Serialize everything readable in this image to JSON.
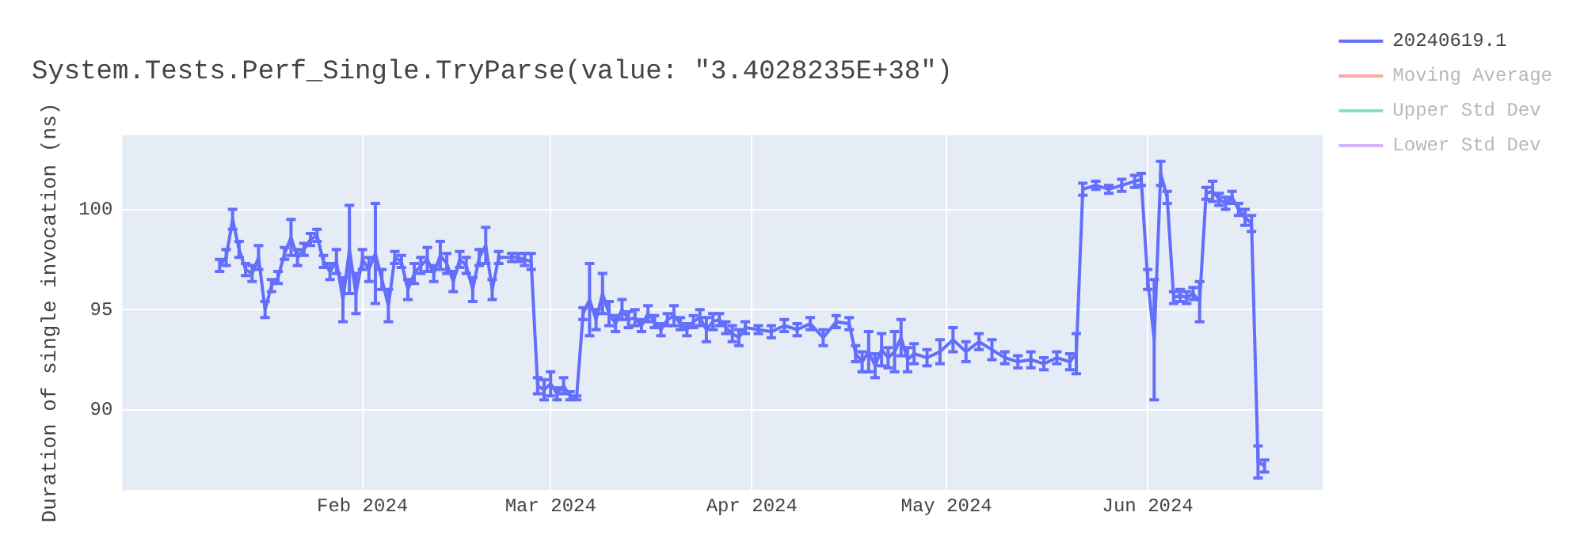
{
  "chart_data": {
    "type": "line",
    "title": "System.Tests.Perf_Single.TryParse(value: \"3.4028235E+38\")",
    "ylabel": "Duration of single invocation (ns)",
    "x": [
      "2024-01-10",
      "2024-01-11",
      "2024-01-12",
      "2024-01-13",
      "2024-01-14",
      "2024-01-15",
      "2024-01-16",
      "2024-01-17",
      "2024-01-18",
      "2024-01-19",
      "2024-01-20",
      "2024-01-21",
      "2024-01-22",
      "2024-01-23",
      "2024-01-24",
      "2024-01-25",
      "2024-01-26",
      "2024-01-27",
      "2024-01-28",
      "2024-01-29",
      "2024-01-30",
      "2024-01-31",
      "2024-02-01",
      "2024-02-02",
      "2024-02-03",
      "2024-02-04",
      "2024-02-05",
      "2024-02-06",
      "2024-02-07",
      "2024-02-08",
      "2024-02-09",
      "2024-02-10",
      "2024-02-11",
      "2024-02-12",
      "2024-02-13",
      "2024-02-14",
      "2024-02-15",
      "2024-02-16",
      "2024-02-17",
      "2024-02-18",
      "2024-02-19",
      "2024-02-20",
      "2024-02-21",
      "2024-02-22",
      "2024-02-24",
      "2024-02-25",
      "2024-02-26",
      "2024-02-27",
      "2024-02-28",
      "2024-02-29",
      "2024-03-01",
      "2024-03-02",
      "2024-03-03",
      "2024-03-04",
      "2024-03-05",
      "2024-03-06",
      "2024-03-07",
      "2024-03-08",
      "2024-03-09",
      "2024-03-10",
      "2024-03-11",
      "2024-03-12",
      "2024-03-13",
      "2024-03-14",
      "2024-03-15",
      "2024-03-16",
      "2024-03-17",
      "2024-03-18",
      "2024-03-19",
      "2024-03-20",
      "2024-03-21",
      "2024-03-22",
      "2024-03-23",
      "2024-03-24",
      "2024-03-25",
      "2024-03-26",
      "2024-03-27",
      "2024-03-28",
      "2024-03-29",
      "2024-03-30",
      "2024-03-31",
      "2024-04-02",
      "2024-04-04",
      "2024-04-06",
      "2024-04-08",
      "2024-04-10",
      "2024-04-12",
      "2024-04-14",
      "2024-04-16",
      "2024-04-17",
      "2024-04-18",
      "2024-04-19",
      "2024-04-20",
      "2024-04-21",
      "2024-04-22",
      "2024-04-23",
      "2024-04-24",
      "2024-04-25",
      "2024-04-26",
      "2024-04-28",
      "2024-04-30",
      "2024-05-02",
      "2024-05-04",
      "2024-05-06",
      "2024-05-08",
      "2024-05-10",
      "2024-05-12",
      "2024-05-14",
      "2024-05-16",
      "2024-05-18",
      "2024-05-20",
      "2024-05-21",
      "2024-05-22",
      "2024-05-24",
      "2024-05-26",
      "2024-05-28",
      "2024-05-30",
      "2024-05-31",
      "2024-06-01",
      "2024-06-02",
      "2024-06-03",
      "2024-06-04",
      "2024-06-05",
      "2024-06-06",
      "2024-06-07",
      "2024-06-08",
      "2024-06-09",
      "2024-06-10",
      "2024-06-11",
      "2024-06-12",
      "2024-06-13",
      "2024-06-14",
      "2024-06-15",
      "2024-06-16",
      "2024-06-17",
      "2024-06-18",
      "2024-06-19"
    ],
    "series": [
      {
        "name": "20240619.1",
        "color": "#636efa",
        "values": [
          97.2,
          97.6,
          99.5,
          98.0,
          97.0,
          96.8,
          97.6,
          95.0,
          96.2,
          96.6,
          97.8,
          98.6,
          97.6,
          98.0,
          98.5,
          98.7,
          97.4,
          96.9,
          97.4,
          95.5,
          98.0,
          95.8,
          97.5,
          97.0,
          97.8,
          96.5,
          95.2,
          97.6,
          97.4,
          96.0,
          96.8,
          97.2,
          97.5,
          96.8,
          97.7,
          97.3,
          96.4,
          97.5,
          97.2,
          96.0,
          97.6,
          98.2,
          96.0,
          97.6,
          97.6,
          97.6,
          97.5,
          97.4,
          91.2,
          91.0,
          91.3,
          90.8,
          91.2,
          90.7,
          90.6,
          94.8,
          95.5,
          94.5,
          95.8,
          94.8,
          94.3,
          95.0,
          94.5,
          94.6,
          94.2,
          94.8,
          94.4,
          94.0,
          94.5,
          94.7,
          94.3,
          94.0,
          94.4,
          94.6,
          94.0,
          94.4,
          94.5,
          94.1,
          93.8,
          93.6,
          94.1,
          94.0,
          93.9,
          94.2,
          94.0,
          94.3,
          93.6,
          94.4,
          94.3,
          92.8,
          92.4,
          92.9,
          92.2,
          93.0,
          92.6,
          92.9,
          93.6,
          92.5,
          92.8,
          92.6,
          92.9,
          93.5,
          92.9,
          93.4,
          93.0,
          92.6,
          92.4,
          92.5,
          92.3,
          92.6,
          92.4,
          92.8,
          101.0,
          101.2,
          101.0,
          101.2,
          101.4,
          101.5,
          96.5,
          93.5,
          101.8,
          100.6,
          95.6,
          95.7,
          95.6,
          95.8,
          95.4,
          100.8,
          100.9,
          100.5,
          100.3,
          100.6,
          100.0,
          99.6,
          99.3,
          87.4,
          87.2
        ],
        "errors": [
          0.3,
          0.4,
          0.5,
          0.4,
          0.3,
          0.4,
          0.6,
          0.4,
          0.3,
          0.3,
          0.3,
          0.9,
          0.4,
          0.3,
          0.3,
          0.3,
          0.3,
          0.4,
          0.6,
          1.1,
          2.2,
          1.0,
          0.5,
          0.6,
          2.5,
          0.5,
          0.8,
          0.3,
          0.3,
          0.5,
          0.5,
          0.4,
          0.6,
          0.4,
          0.7,
          0.5,
          0.5,
          0.4,
          0.4,
          0.6,
          0.4,
          0.9,
          0.5,
          0.3,
          0.2,
          0.2,
          0.3,
          0.4,
          0.4,
          0.5,
          0.6,
          0.3,
          0.4,
          0.2,
          0.1,
          0.3,
          1.8,
          0.5,
          1.0,
          0.6,
          0.4,
          0.5,
          0.4,
          0.4,
          0.3,
          0.4,
          0.3,
          0.3,
          0.3,
          0.5,
          0.3,
          0.3,
          0.3,
          0.4,
          0.6,
          0.4,
          0.3,
          0.3,
          0.4,
          0.4,
          0.3,
          0.2,
          0.3,
          0.3,
          0.3,
          0.3,
          0.4,
          0.3,
          0.3,
          0.4,
          0.5,
          1.0,
          0.6,
          0.8,
          0.5,
          1.0,
          0.9,
          0.6,
          0.5,
          0.4,
          0.6,
          0.6,
          0.5,
          0.4,
          0.5,
          0.3,
          0.3,
          0.4,
          0.3,
          0.3,
          0.4,
          1.0,
          0.3,
          0.2,
          0.2,
          0.3,
          0.3,
          0.3,
          0.5,
          3.0,
          0.6,
          0.3,
          0.3,
          0.3,
          0.3,
          0.3,
          1.0,
          0.3,
          0.5,
          0.3,
          0.3,
          0.3,
          0.3,
          0.4,
          0.4,
          0.8,
          0.3
        ]
      },
      {
        "name": "Moving Average",
        "color": "#ef553b",
        "values": [
          null,
          null,
          null,
          null,
          null,
          null,
          null,
          null,
          null,
          null,
          null,
          null,
          null,
          null,
          null,
          null,
          null,
          null,
          null,
          null,
          null,
          null,
          null,
          null,
          null,
          null,
          null,
          null,
          null,
          null,
          null,
          null,
          null,
          null,
          null,
          null,
          null,
          null,
          null,
          null,
          null,
          null,
          null,
          null,
          null,
          null,
          null,
          null,
          null,
          null,
          null,
          null,
          null,
          null,
          null,
          null,
          null,
          null,
          null,
          null,
          null,
          null,
          null,
          null,
          null,
          null,
          null,
          null,
          null,
          null,
          null,
          null,
          null,
          null,
          null,
          null,
          null,
          null,
          null,
          null,
          null,
          null,
          null,
          null,
          null,
          null,
          null,
          null,
          null,
          null,
          null,
          null,
          null,
          null,
          null,
          null,
          null,
          null,
          null,
          null,
          null,
          null,
          null,
          null,
          null,
          null,
          null,
          null,
          null,
          null,
          null,
          null,
          null,
          null,
          null,
          null,
          null,
          null,
          null,
          null,
          null,
          null,
          null,
          null,
          null,
          null,
          null,
          null,
          null,
          null,
          null,
          null,
          null,
          null,
          null,
          null,
          null
        ]
      },
      {
        "name": "Upper Std Dev",
        "color": "#00cc96",
        "values": [
          null,
          null,
          null,
          null,
          null,
          null,
          null,
          null,
          null,
          null,
          null,
          null,
          null,
          null,
          null,
          null,
          null,
          null,
          null,
          null,
          null,
          null,
          null,
          null,
          null,
          null,
          null,
          null,
          null,
          null,
          null,
          null,
          null,
          null,
          null,
          null,
          null,
          null,
          null,
          null,
          null,
          null,
          null,
          null,
          null,
          null,
          null,
          null,
          null,
          null,
          null,
          null,
          null,
          null,
          null,
          null,
          null,
          null,
          null,
          null,
          null,
          null,
          null,
          null,
          null,
          null,
          null,
          null,
          null,
          null,
          null,
          null,
          null,
          null,
          null,
          null,
          null,
          null,
          null,
          null,
          null,
          null,
          null,
          null,
          null,
          null,
          null,
          null,
          null,
          null,
          null,
          null,
          null,
          null,
          null,
          null,
          null,
          null,
          null,
          null,
          null,
          null,
          null,
          null,
          null,
          null,
          null,
          null,
          null,
          null,
          null,
          null,
          null,
          null,
          null,
          null,
          null,
          null,
          null,
          null,
          null,
          null,
          null,
          null,
          null,
          null,
          null,
          null,
          null,
          null,
          null,
          null,
          null,
          null,
          null,
          null,
          null
        ]
      },
      {
        "name": "Lower Std Dev",
        "color": "#ab63fa",
        "values": [
          null,
          null,
          null,
          null,
          null,
          null,
          null,
          null,
          null,
          null,
          null,
          null,
          null,
          null,
          null,
          null,
          null,
          null,
          null,
          null,
          null,
          null,
          null,
          null,
          null,
          null,
          null,
          null,
          null,
          null,
          null,
          null,
          null,
          null,
          null,
          null,
          null,
          null,
          null,
          null,
          null,
          null,
          null,
          null,
          null,
          null,
          null,
          null,
          null,
          null,
          null,
          null,
          null,
          null,
          null,
          null,
          null,
          null,
          null,
          null,
          null,
          null,
          null,
          null,
          null,
          null,
          null,
          null,
          null,
          null,
          null,
          null,
          null,
          null,
          null,
          null,
          null,
          null,
          null,
          null,
          null,
          null,
          null,
          null,
          null,
          null,
          null,
          null,
          null,
          null,
          null,
          null,
          null,
          null,
          null,
          null,
          null,
          null,
          null,
          null,
          null,
          null,
          null,
          null,
          null,
          null,
          null,
          null,
          null,
          null,
          null,
          null,
          null,
          null,
          null,
          null,
          null,
          null,
          null,
          null,
          null,
          null,
          null,
          null,
          null,
          null,
          null,
          null,
          null,
          null,
          null,
          null,
          null,
          null,
          null,
          null,
          null
        ]
      }
    ],
    "xlim": [
      "2023-12-26",
      "2024-06-28"
    ],
    "xticks": [
      {
        "value": "2024-02-01",
        "label": "Feb 2024"
      },
      {
        "value": "2024-03-01",
        "label": "Mar 2024"
      },
      {
        "value": "2024-04-01",
        "label": "Apr 2024"
      },
      {
        "value": "2024-05-01",
        "label": "May 2024"
      },
      {
        "value": "2024-06-01",
        "label": "Jun 2024"
      }
    ],
    "ylim": [
      86,
      103.7
    ],
    "yticks": [
      90,
      95,
      100
    ],
    "grid": true,
    "legend": "right",
    "marker": "none",
    "line_style": "solid"
  }
}
